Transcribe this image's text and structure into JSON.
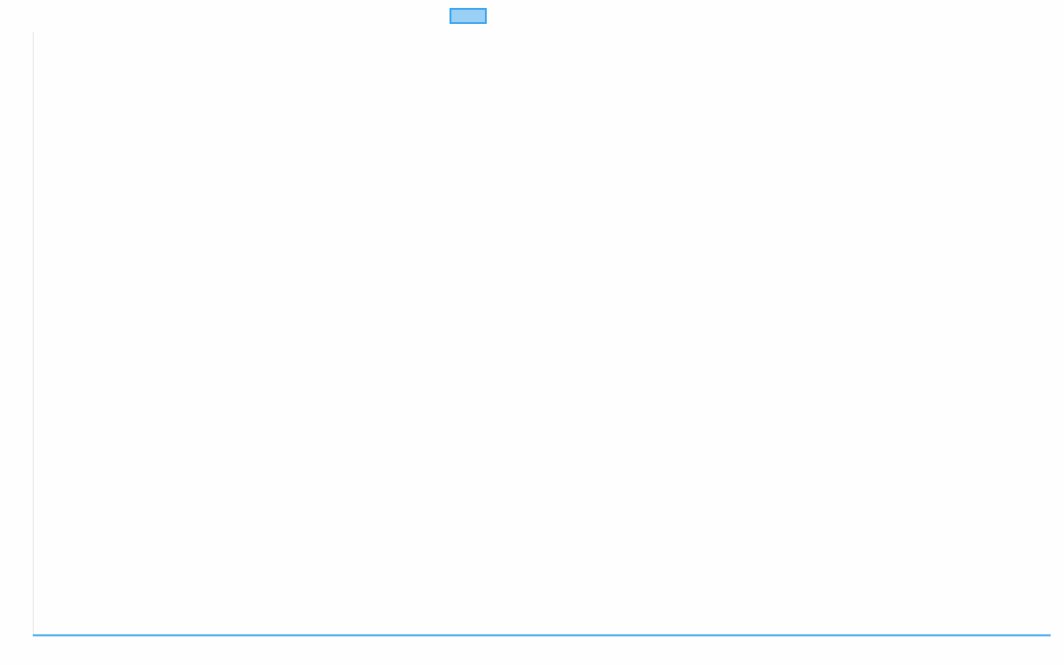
{
  "chart_data": {
    "type": "line",
    "series": [
      {
        "values": [],
        "border_color": "#36a2eb",
        "fill_color": "#9ad0f5"
      }
    ],
    "legend": "top",
    "grid": false
  }
}
